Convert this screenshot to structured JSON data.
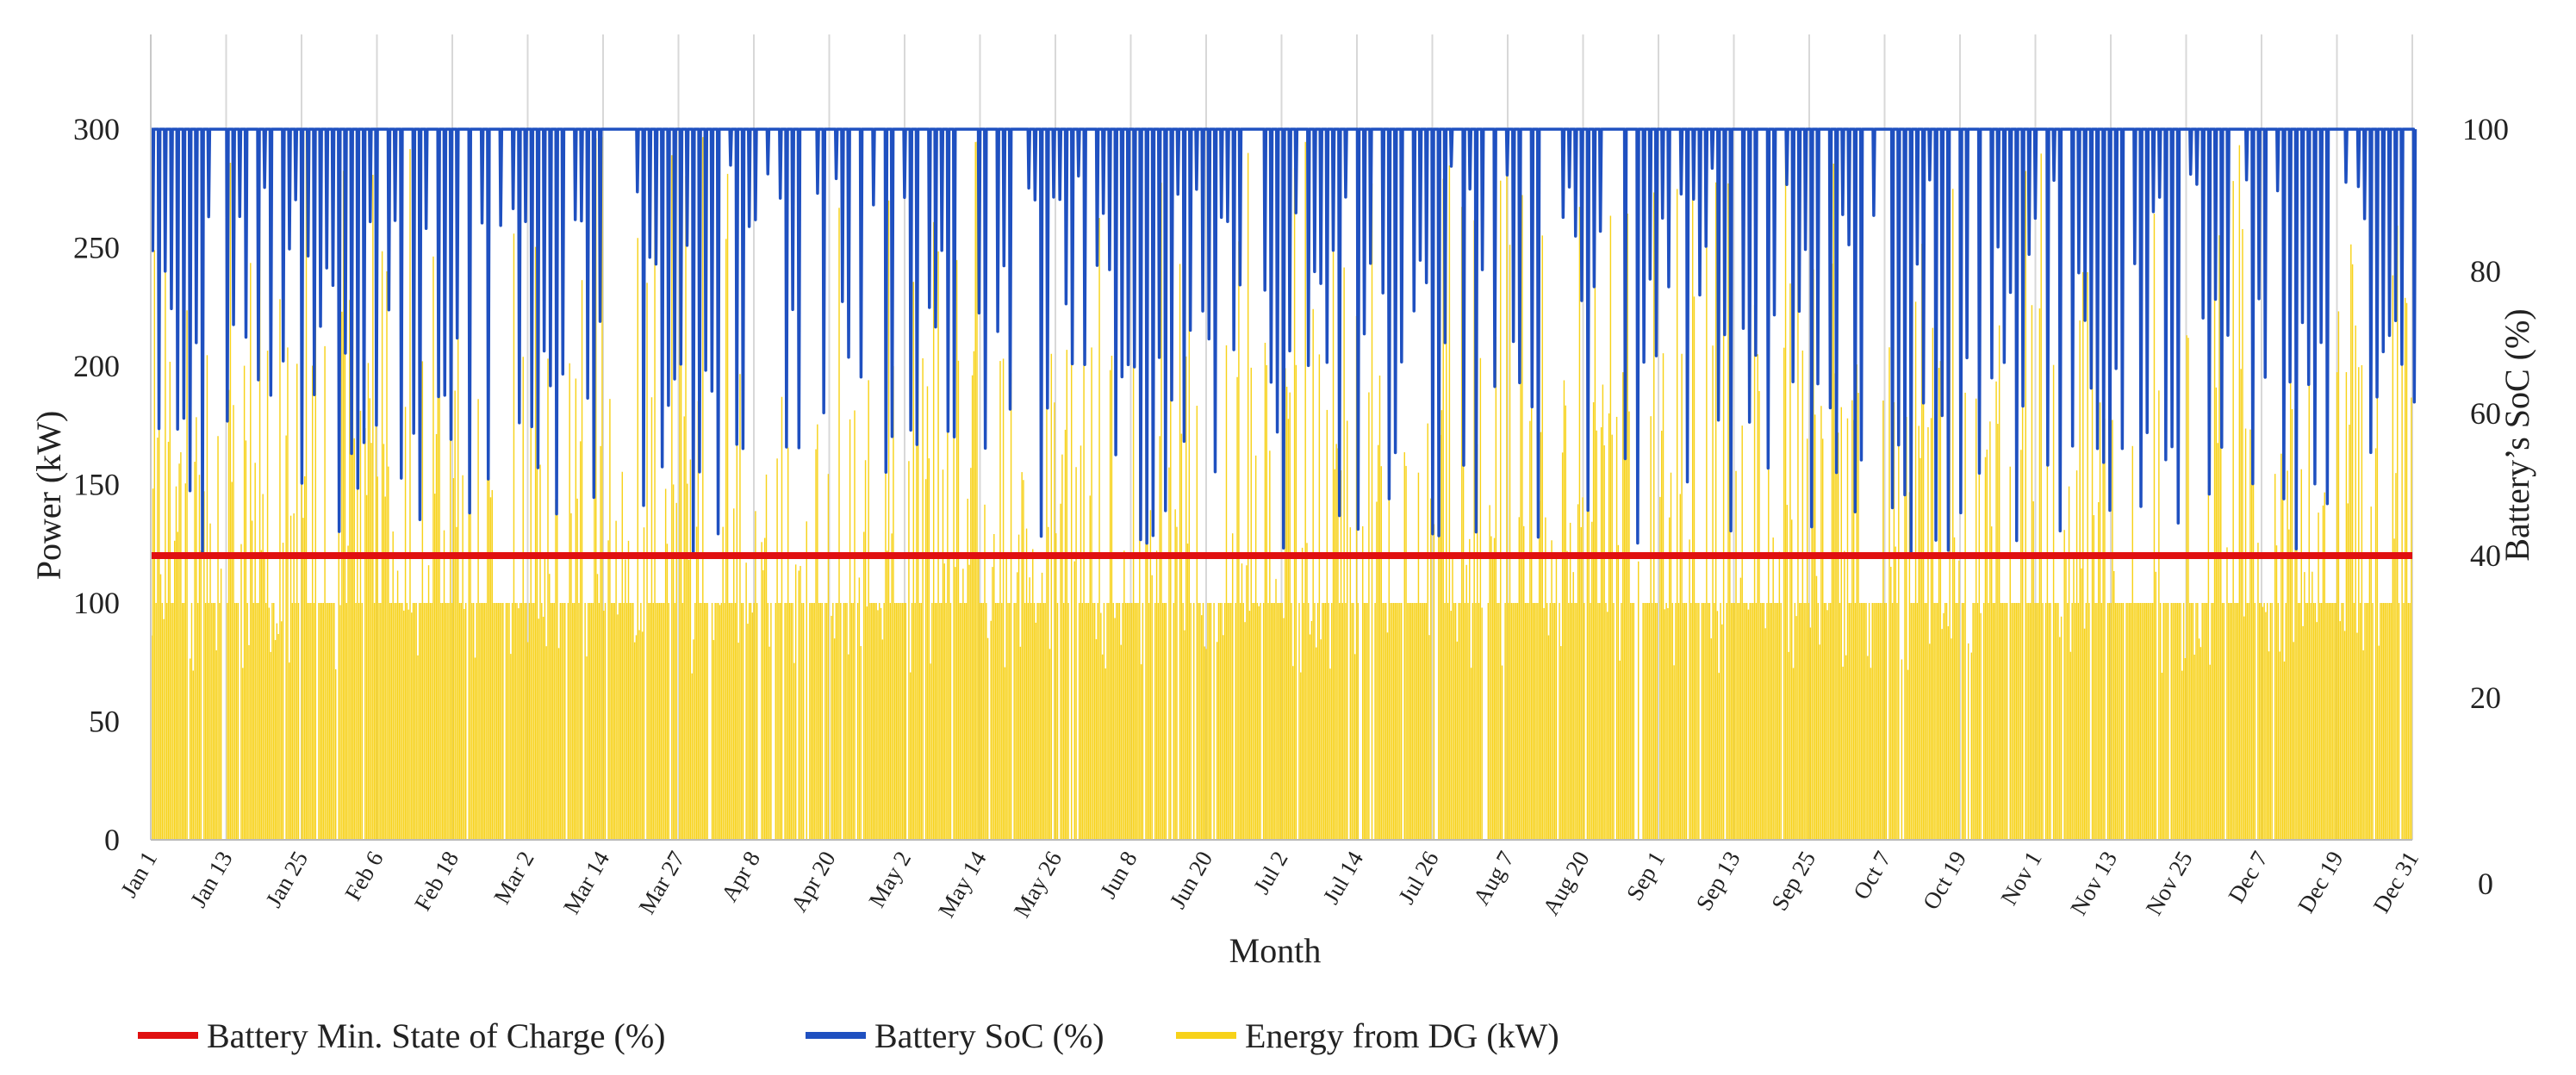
{
  "chart_data": {
    "type": "bar+line",
    "title": "",
    "xlabel": "Month",
    "ylabel_left": "Power (kW)",
    "ylabel_right": "Battery’s SoC (%)",
    "ylim_left": [
      0,
      340
    ],
    "ylim_right": [
      0,
      113.33
    ],
    "left_ticks": [
      "0",
      "50",
      "100",
      "150",
      "200",
      "250",
      "300"
    ],
    "right_ticks": [
      "0",
      "20",
      "40",
      "60",
      "80",
      "100"
    ],
    "x_tick_labels": [
      "Jan 1",
      "Jan 13",
      "Jan 25",
      "Feb 6",
      "Feb 18",
      "Mar 2",
      "Mar 14",
      "Mar 27",
      "Apr 8",
      "Apr 20",
      "May 2",
      "May 14",
      "May 26",
      "Jun 8",
      "Jun 20",
      "Jul 2",
      "Jul 14",
      "Jul 26",
      "Aug 7",
      "Aug 20",
      "Sep 1",
      "Sep 13",
      "Sep 25",
      "Oct 7",
      "Oct 19",
      "Nov 1",
      "Nov 13",
      "Nov 25",
      "Dec 7",
      "Dec 19",
      "Dec 31"
    ],
    "x_range_days": [
      1,
      365
    ],
    "series": [
      {
        "name": "Battery Min. State of Charge (%)",
        "kind": "hline",
        "axis": "right",
        "value": 40,
        "color": "#e01010"
      },
      {
        "name": "Battery SoC (%)",
        "kind": "line",
        "axis": "right",
        "baseline": 100,
        "color": "#1f50c0",
        "approx_daily_minimum_range": [
          40,
          100
        ]
      },
      {
        "name": "Energy from DG (kW)",
        "kind": "bars",
        "axis": "left",
        "color": "#f7d21a",
        "approx_typical_value": 100,
        "approx_peak_value": 300
      }
    ],
    "legend_position": "bottom"
  }
}
